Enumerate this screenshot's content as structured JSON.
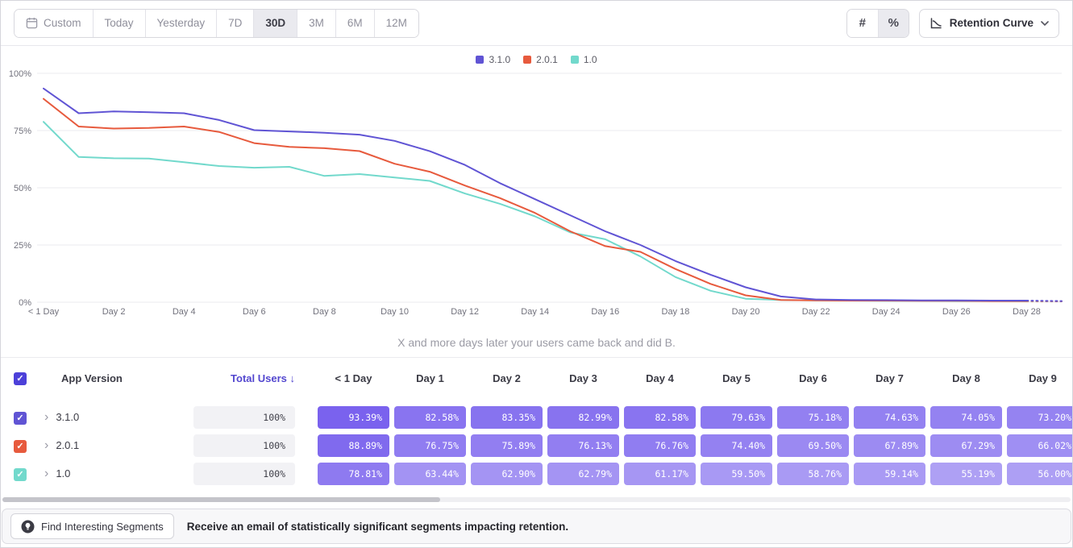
{
  "toolbar": {
    "date_buttons": [
      "Custom",
      "Today",
      "Yesterday",
      "7D",
      "30D",
      "3M",
      "6M",
      "12M"
    ],
    "selected_range": "30D",
    "format_toggles": [
      {
        "name": "absolute-numbers",
        "glyph": "#",
        "selected": false
      },
      {
        "name": "percentages",
        "glyph": "%",
        "selected": true
      }
    ],
    "view_selector": {
      "label": "Retention Curve"
    }
  },
  "chart_data": {
    "type": "line",
    "ylim": [
      0,
      100
    ],
    "y_ticks": [
      0,
      25,
      50,
      75,
      100
    ],
    "y_tick_suffix": "%",
    "x_tick_labels": [
      "< 1 Day",
      "Day 2",
      "Day 4",
      "Day 6",
      "Day 8",
      "Day 10",
      "Day 12",
      "Day 14",
      "Day 16",
      "Day 18",
      "Day 20",
      "Day 22",
      "Day 24",
      "Day 26",
      "Day 28"
    ],
    "x_tick_step": 2,
    "days": 30,
    "legend_position": "top-center",
    "grid": "horizontal",
    "caption": "X and more days later your users came back and did B.",
    "series": [
      {
        "name": "3.1.0",
        "color": "#6054d4",
        "values": [
          93.39,
          82.58,
          83.35,
          82.99,
          82.58,
          79.63,
          75.18,
          74.63,
          74.05,
          73.2,
          70.5,
          66.0,
          60.0,
          52.0,
          45.0,
          38.0,
          31.0,
          25.0,
          18.0,
          12.0,
          6.5,
          2.5,
          1.2,
          1.0,
          0.9,
          0.8,
          0.8,
          0.7,
          0.7,
          0.5
        ]
      },
      {
        "name": "2.0.1",
        "color": "#e75a3d",
        "values": [
          88.89,
          76.75,
          75.89,
          76.13,
          76.76,
          74.4,
          69.5,
          67.89,
          67.29,
          66.02,
          60.5,
          57.0,
          51.0,
          45.5,
          39.0,
          31.0,
          24.5,
          22.0,
          14.5,
          8.0,
          3.0,
          1.0,
          0.8,
          0.7,
          0.7,
          0.6,
          0.6,
          0.5,
          0.5,
          0.4
        ]
      },
      {
        "name": "1.0",
        "color": "#72d9cc",
        "values": [
          78.81,
          63.44,
          62.9,
          62.79,
          61.17,
          59.5,
          58.76,
          59.14,
          55.19,
          56.0,
          54.5,
          53.0,
          47.5,
          43.0,
          37.5,
          30.5,
          27.5,
          20.0,
          11.0,
          5.0,
          1.5,
          1.0,
          0.8,
          0.7,
          0.6,
          0.6,
          0.5,
          0.5,
          0.4,
          0.4
        ]
      }
    ]
  },
  "table": {
    "columns": {
      "app_version": "App Version",
      "total_users": "Total Users",
      "sort_indicator": "↓"
    },
    "day_headers": [
      "< 1 Day",
      "Day 1",
      "Day 2",
      "Day 3",
      "Day 4",
      "Day 5",
      "Day 6",
      "Day 7",
      "Day 8",
      "Day 9"
    ],
    "header_checkbox_color": "#4c40d9",
    "rows": [
      {
        "name": "3.1.0",
        "color": "#6054d4",
        "total": "100%",
        "values": [
          "93.39%",
          "82.58%",
          "83.35%",
          "82.99%",
          "82.58%",
          "79.63%",
          "75.18%",
          "74.63%",
          "74.05%",
          "73.20%"
        ]
      },
      {
        "name": "2.0.1",
        "color": "#e75a3d",
        "total": "100%",
        "values": [
          "88.89%",
          "76.75%",
          "75.89%",
          "76.13%",
          "76.76%",
          "74.40%",
          "69.50%",
          "67.89%",
          "67.29%",
          "66.02%"
        ]
      },
      {
        "name": "1.0",
        "color": "#72d9cc",
        "total": "100%",
        "values": [
          "78.81%",
          "63.44%",
          "62.90%",
          "62.79%",
          "61.17%",
          "59.50%",
          "58.76%",
          "59.14%",
          "55.19%",
          "56.00%"
        ]
      }
    ]
  },
  "footer": {
    "button_label": "Find Interesting Segments",
    "message": "Receive an email of statistically significant segments impacting retention."
  }
}
